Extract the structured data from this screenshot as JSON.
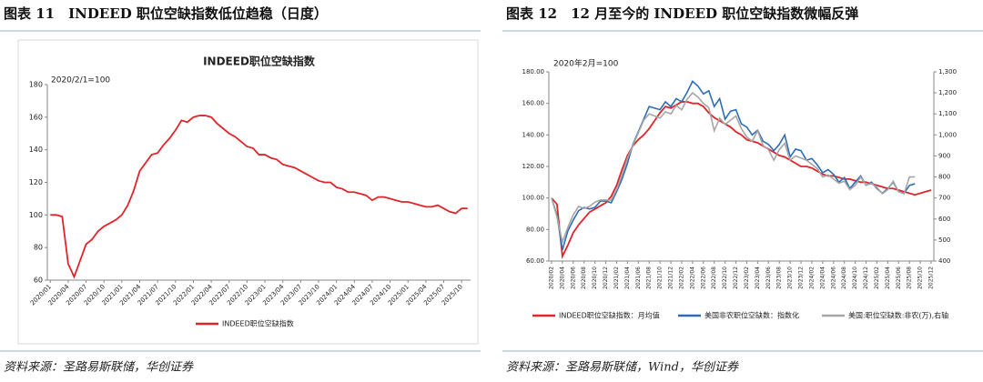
{
  "figures": [
    {
      "caption": "图表 11　INDEED 职位空缺指数低位趋稳（日度）",
      "source": "资料来源：圣路易斯联储，华创证券"
    },
    {
      "caption": "图表 12　12 月至今的 INDEED 职位空缺指数微幅反弹",
      "source": "资料来源：圣路易斯联储，Wind，华创证券"
    }
  ],
  "chart_data": [
    {
      "type": "line",
      "title": "INDEED职位空缺指数",
      "annotation": "2020/2/1=100",
      "legend": "bottom",
      "categories": [
        "2020/01",
        null,
        null,
        "2020/04",
        null,
        null,
        "2020/07",
        null,
        null,
        "2020/10",
        null,
        null,
        "2021/01",
        null,
        null,
        "2021/04",
        null,
        null,
        "2021/07",
        null,
        null,
        "2021/10",
        null,
        null,
        "2022/01",
        null,
        null,
        "2022/04",
        null,
        null,
        "2022/07",
        null,
        null,
        "2022/10",
        null,
        null,
        "2023/01",
        null,
        null,
        "2023/04",
        null,
        null,
        "2023/07",
        null,
        null,
        "2023/10",
        null,
        null,
        "2024/01",
        null,
        null,
        "2024/04",
        null,
        null,
        "2024/07",
        null,
        null,
        "2024/10",
        null,
        null,
        "2025/01",
        null,
        null,
        "2025/04",
        null,
        null,
        "2025/07",
        null,
        null,
        "2025/10",
        null
      ],
      "series": [
        {
          "name": "INDEED职位空缺指数",
          "color": "#e0242b",
          "values": [
            100,
            100,
            99,
            70,
            62,
            72,
            82,
            85,
            90,
            93,
            95,
            97,
            100,
            106,
            115,
            127,
            132,
            137,
            138,
            143,
            147,
            152,
            158,
            157,
            160,
            161,
            161,
            160,
            156,
            153,
            150,
            148,
            145,
            142,
            141,
            137,
            137,
            135,
            134,
            131,
            130,
            129,
            127,
            125,
            123,
            121,
            120,
            120,
            117,
            116,
            114,
            114,
            113,
            112,
            109,
            111,
            111,
            110,
            109,
            108,
            108,
            107,
            106,
            105,
            105,
            106,
            104,
            102,
            101,
            104,
            104
          ]
        }
      ],
      "ylim": [
        60,
        180
      ],
      "yticks": [
        60,
        80,
        100,
        120,
        140,
        160,
        180
      ]
    },
    {
      "type": "line",
      "annotation": "2020年2月=100",
      "legend": "bottom",
      "categories": [
        "2020/02",
        null,
        "2020/04",
        null,
        "2020/06",
        null,
        "2020/08",
        null,
        "2020/10",
        null,
        "2020/12",
        null,
        "2021/02",
        null,
        "2021/04",
        null,
        "2021/06",
        null,
        "2021/08",
        null,
        "2021/10",
        null,
        "2021/12",
        null,
        "2022/02",
        null,
        "2022/04",
        null,
        "2022/06",
        null,
        "2022/08",
        null,
        "2022/10",
        null,
        "2022/12",
        null,
        "2023/02",
        null,
        "2023/04",
        null,
        "2023/06",
        null,
        "2023/08",
        null,
        "2023/10",
        null,
        "2023/12",
        null,
        "2024/02",
        null,
        "2024/04",
        null,
        "2024/06",
        null,
        "2024/08",
        null,
        "2024/10",
        null,
        "2024/12",
        null,
        "2025/02",
        null,
        "2025/04",
        null,
        "2025/06",
        null,
        "2025/08",
        null,
        "2025/10",
        null,
        "2025/12"
      ],
      "series": [
        {
          "name": "INDEED职位空缺指数：月均值",
          "color": "#e0242b",
          "values": [
            100,
            96,
            63,
            70,
            78,
            83,
            87,
            91,
            93,
            95,
            97,
            101,
            108,
            118,
            127,
            133,
            137,
            140,
            144,
            149,
            154,
            158,
            157,
            159,
            161,
            161,
            160,
            160,
            158,
            154,
            151,
            149,
            147,
            145,
            142,
            140,
            137,
            136,
            135,
            133,
            131,
            129,
            127,
            126,
            124,
            122,
            120,
            120,
            119,
            117,
            115,
            114,
            114,
            113,
            112,
            112,
            111,
            110,
            110,
            109,
            108,
            107,
            106,
            106,
            105,
            104,
            103,
            102,
            103,
            104,
            105
          ]
        },
        {
          "name": "美国非农职位空缺数：指数化",
          "color": "#2e6db4",
          "values": [
            100,
            89,
            67,
            79,
            86,
            92,
            94,
            93,
            94,
            98,
            98,
            97,
            104,
            112,
            122,
            134,
            142,
            150,
            158,
            157,
            156,
            161,
            158,
            163,
            161,
            167,
            174,
            171,
            166,
            168,
            158,
            163,
            150,
            155,
            156,
            147,
            145,
            140,
            143,
            136,
            134,
            130,
            134,
            140,
            126,
            131,
            130,
            124,
            125,
            121,
            116,
            118,
            115,
            110,
            113,
            106,
            110,
            114,
            108,
            110,
            106,
            103,
            106,
            110,
            104,
            103,
            108,
            109,
            null,
            null,
            null
          ]
        },
        {
          "name": "美国:职位空缺数:非农(万),右轴",
          "color": "#a6a6a6",
          "axis": "y2",
          "values": [
            700,
            610,
            490,
            560,
            620,
            660,
            650,
            660,
            680,
            690,
            690,
            690,
            740,
            810,
            890,
            950,
            1010,
            1070,
            1100,
            1090,
            1080,
            1110,
            1100,
            1140,
            1120,
            1170,
            1200,
            1180,
            1150,
            1130,
            1020,
            1080,
            1050,
            1070,
            1090,
            1030,
            990,
            970,
            1020,
            950,
            930,
            880,
            930,
            960,
            880,
            900,
            890,
            880,
            860,
            840,
            800,
            810,
            790,
            770,
            780,
            740,
            760,
            800,
            760,
            770,
            750,
            720,
            740,
            780,
            730,
            720,
            800,
            800,
            null,
            null,
            null
          ]
        }
      ],
      "ylim": [
        60,
        180
      ],
      "yticks": [
        {
          "value": 60,
          "label": "60.00"
        },
        {
          "value": 80,
          "label": "80.00"
        },
        {
          "value": 100,
          "label": "100.00"
        },
        {
          "value": 120,
          "label": "120.00"
        },
        {
          "value": 140,
          "label": "140.00"
        },
        {
          "value": 160,
          "label": "160.00"
        },
        {
          "value": 180,
          "label": "180.00"
        }
      ],
      "y2lim": [
        400,
        1300
      ],
      "y2ticks": [
        400,
        500,
        600,
        700,
        800,
        900,
        {
          "value": 1000,
          "label": "1,000"
        },
        {
          "value": 1100,
          "label": "1,100"
        },
        {
          "value": 1200,
          "label": "1,200"
        },
        {
          "value": 1300,
          "label": "1,300"
        }
      ]
    }
  ]
}
